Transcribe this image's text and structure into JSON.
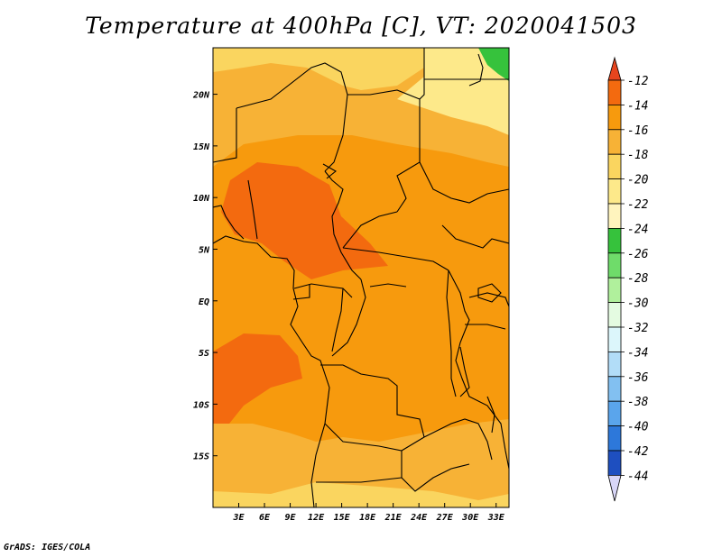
{
  "title": "Temperature at 400hPa [C], VT: 2020041503",
  "credit": "GrADS: IGES/COLA",
  "map": {
    "lon_range": [
      0,
      34.5
    ],
    "lat_range": [
      -20,
      24.5
    ],
    "x_ticks": [
      {
        "lon": 3,
        "label": "3E"
      },
      {
        "lon": 6,
        "label": "6E"
      },
      {
        "lon": 9,
        "label": "9E"
      },
      {
        "lon": 12,
        "label": "12E"
      },
      {
        "lon": 15,
        "label": "15E"
      },
      {
        "lon": 18,
        "label": "18E"
      },
      {
        "lon": 21,
        "label": "21E"
      },
      {
        "lon": 24,
        "label": "24E"
      },
      {
        "lon": 27,
        "label": "27E"
      },
      {
        "lon": 30,
        "label": "30E"
      },
      {
        "lon": 33,
        "label": "33E"
      }
    ],
    "y_ticks": [
      {
        "lat": 20,
        "label": "20N"
      },
      {
        "lat": 15,
        "label": "15N"
      },
      {
        "lat": 10,
        "label": "10N"
      },
      {
        "lat": 5,
        "label": "5N"
      },
      {
        "lat": 0,
        "label": "EQ"
      },
      {
        "lat": -5,
        "label": "5S"
      },
      {
        "lat": -10,
        "label": "10S"
      },
      {
        "lat": -15,
        "label": "15S"
      }
    ]
  },
  "colorbar": {
    "labels": [
      "-12",
      "-14",
      "-16",
      "-18",
      "-20",
      "-22",
      "-24",
      "-26",
      "-28",
      "-30",
      "-32",
      "-34",
      "-36",
      "-38",
      "-40",
      "-42",
      "-44"
    ],
    "colors": [
      "#e6451e",
      "#f36a0f",
      "#f79a0d",
      "#f7b236",
      "#fad55f",
      "#fde98a",
      "#fff4be",
      "#36c23c",
      "#6fdc6a",
      "#b0f09c",
      "#e4fbe1",
      "#dcf6fb",
      "#b2ddf8",
      "#82c0f1",
      "#5aa5ec",
      "#2d78da",
      "#1e4fc0",
      "#1a35a6",
      "#120f6e",
      "#d8d6f7"
    ]
  }
}
